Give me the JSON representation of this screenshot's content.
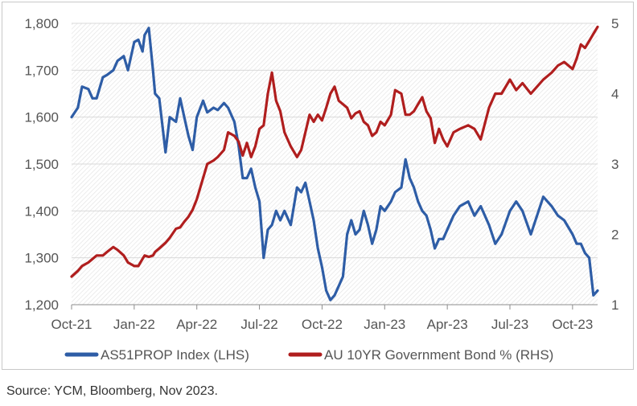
{
  "colors": {
    "series1": "#2E5DA6",
    "series2": "#B01E1E",
    "grid": "#d9d9d9",
    "axis": "#8c8c8c",
    "plot_hatch": "#e6e6e6"
  },
  "source": "Source: YCM, Bloomberg, Nov 2023.",
  "chart_data": {
    "type": "line",
    "title": "",
    "xlabel": "",
    "ylabel": "",
    "x_ticks": [
      "Oct-21",
      "Jan-22",
      "Apr-22",
      "Jul-22",
      "Oct-22",
      "Jan-23",
      "Apr-23",
      "Jul-23",
      "Oct-23"
    ],
    "x_range": [
      0,
      25.2
    ],
    "y_left": {
      "ticks": [
        "1,200",
        "1,300",
        "1,400",
        "1,500",
        "1,600",
        "1,700",
        "1,800"
      ],
      "lim": [
        1200,
        1800
      ]
    },
    "y_right": {
      "ticks": [
        "1",
        "2",
        "3",
        "4",
        "5"
      ],
      "lim": [
        1,
        5
      ]
    },
    "grid": "horizontal",
    "legend_position": "bottom",
    "series": [
      {
        "name": "AS51PROP Index (LHS)",
        "axis": "left",
        "color": "#2E5DA6",
        "x": [
          0,
          0.3,
          0.5,
          0.8,
          1.0,
          1.2,
          1.5,
          1.7,
          2.0,
          2.2,
          2.5,
          2.7,
          3.0,
          3.2,
          3.4,
          3.5,
          3.7,
          3.9,
          4.0,
          4.2,
          4.5,
          4.7,
          5.0,
          5.2,
          5.4,
          5.6,
          5.8,
          6.0,
          6.3,
          6.5,
          6.8,
          7.0,
          7.3,
          7.5,
          7.8,
          8.0,
          8.2,
          8.4,
          8.6,
          8.8,
          9.0,
          9.2,
          9.4,
          9.6,
          9.8,
          10.0,
          10.2,
          10.5,
          10.8,
          11.0,
          11.2,
          11.4,
          11.6,
          11.8,
          12.0,
          12.2,
          12.4,
          12.6,
          12.8,
          13.0,
          13.2,
          13.4,
          13.6,
          13.8,
          14.0,
          14.2,
          14.4,
          14.6,
          14.8,
          15.0,
          15.3,
          15.5,
          15.8,
          16.0,
          16.2,
          16.4,
          16.6,
          16.8,
          17.0,
          17.2,
          17.4,
          17.6,
          17.8,
          18.0,
          18.3,
          18.6,
          19.0,
          19.3,
          19.6,
          20.0,
          20.3,
          20.6,
          21.0,
          21.3,
          21.6,
          22.0,
          22.3,
          22.6,
          23.0,
          23.3,
          23.6,
          24.0,
          24.2,
          24.4,
          24.6,
          24.8,
          25.0,
          25.2
        ],
        "y": [
          1600,
          1620,
          1665,
          1660,
          1640,
          1640,
          1685,
          1690,
          1700,
          1720,
          1730,
          1700,
          1760,
          1765,
          1740,
          1775,
          1790,
          1700,
          1650,
          1640,
          1525,
          1600,
          1590,
          1640,
          1600,
          1560,
          1530,
          1600,
          1635,
          1610,
          1620,
          1615,
          1630,
          1620,
          1590,
          1540,
          1470,
          1470,
          1490,
          1450,
          1420,
          1300,
          1360,
          1370,
          1400,
          1380,
          1400,
          1370,
          1450,
          1440,
          1460,
          1420,
          1380,
          1320,
          1280,
          1230,
          1210,
          1220,
          1240,
          1260,
          1350,
          1380,
          1350,
          1360,
          1400,
          1370,
          1330,
          1360,
          1410,
          1400,
          1420,
          1440,
          1450,
          1510,
          1470,
          1450,
          1420,
          1400,
          1390,
          1360,
          1320,
          1340,
          1340,
          1360,
          1390,
          1410,
          1420,
          1390,
          1410,
          1370,
          1330,
          1350,
          1400,
          1420,
          1400,
          1350,
          1390,
          1430,
          1410,
          1390,
          1380,
          1350,
          1330,
          1330,
          1310,
          1300,
          1220,
          1230
        ]
      },
      {
        "name": "AU 10YR Government Bond % (RHS)",
        "axis": "right",
        "color": "#B01E1E",
        "x": [
          0,
          0.3,
          0.5,
          0.8,
          1.0,
          1.2,
          1.5,
          1.7,
          2.0,
          2.2,
          2.5,
          2.7,
          3.0,
          3.2,
          3.4,
          3.5,
          3.7,
          3.9,
          4.0,
          4.2,
          4.5,
          4.7,
          5.0,
          5.2,
          5.4,
          5.6,
          5.8,
          6.0,
          6.3,
          6.5,
          6.8,
          7.0,
          7.3,
          7.5,
          7.8,
          8.0,
          8.2,
          8.4,
          8.6,
          8.8,
          9.0,
          9.2,
          9.4,
          9.6,
          9.8,
          10.0,
          10.2,
          10.5,
          10.8,
          11.0,
          11.2,
          11.4,
          11.6,
          11.8,
          12.0,
          12.2,
          12.4,
          12.6,
          12.8,
          13.0,
          13.2,
          13.4,
          13.6,
          13.8,
          14.0,
          14.2,
          14.4,
          14.6,
          14.8,
          15.0,
          15.3,
          15.5,
          15.8,
          16.0,
          16.2,
          16.4,
          16.6,
          16.8,
          17.0,
          17.2,
          17.4,
          17.6,
          17.8,
          18.0,
          18.3,
          18.6,
          19.0,
          19.3,
          19.6,
          20.0,
          20.3,
          20.6,
          21.0,
          21.3,
          21.6,
          22.0,
          22.3,
          22.6,
          23.0,
          23.3,
          23.6,
          24.0,
          24.2,
          24.4,
          24.6,
          24.8,
          25.0,
          25.2
        ],
        "y": [
          1.4,
          1.48,
          1.55,
          1.6,
          1.65,
          1.7,
          1.7,
          1.75,
          1.82,
          1.78,
          1.7,
          1.6,
          1.55,
          1.55,
          1.65,
          1.7,
          1.68,
          1.7,
          1.75,
          1.8,
          1.88,
          1.95,
          2.08,
          2.1,
          2.18,
          2.25,
          2.35,
          2.5,
          2.8,
          3.0,
          3.05,
          3.1,
          3.2,
          3.45,
          3.4,
          3.32,
          3.12,
          3.3,
          3.1,
          3.25,
          3.5,
          3.55,
          4.0,
          4.3,
          3.9,
          3.75,
          3.45,
          3.25,
          3.1,
          3.2,
          3.45,
          3.7,
          3.6,
          3.7,
          3.62,
          3.8,
          4.0,
          4.1,
          3.9,
          3.85,
          3.8,
          3.65,
          3.72,
          3.75,
          3.6,
          3.55,
          3.4,
          3.45,
          3.6,
          3.55,
          3.7,
          4.05,
          4.0,
          3.7,
          3.7,
          3.75,
          3.85,
          3.95,
          3.75,
          3.65,
          3.3,
          3.5,
          3.35,
          3.25,
          3.45,
          3.5,
          3.55,
          3.5,
          3.35,
          3.8,
          4.0,
          4.0,
          4.2,
          4.05,
          4.15,
          4.0,
          4.1,
          4.2,
          4.3,
          4.4,
          4.45,
          4.35,
          4.5,
          4.7,
          4.65,
          4.75,
          4.85,
          4.95
        ]
      }
    ]
  }
}
